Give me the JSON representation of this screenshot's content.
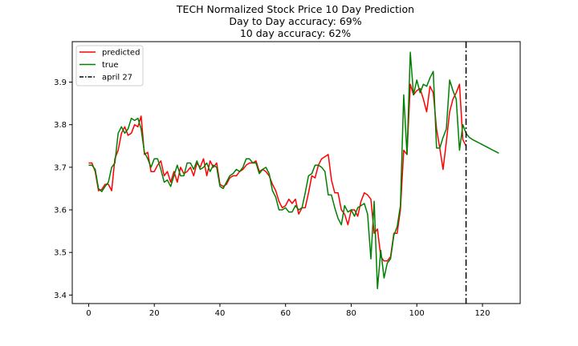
{
  "chart_data": {
    "type": "line",
    "title": "TECH Normalized Stock Price 10 Day Prediction",
    "subtitle": [
      "Day to Day accuracy: 69%",
      "10 day accuracy: 62%"
    ],
    "xlabel": "",
    "ylabel": "",
    "xlim": [
      -5,
      131.5
    ],
    "ylim": [
      3.38,
      3.995
    ],
    "xticks": [
      0,
      20,
      40,
      60,
      80,
      100,
      120
    ],
    "yticks": [
      3.4,
      3.5,
      3.6,
      3.7,
      3.8,
      3.9
    ],
    "grid": false,
    "legend_position": "upper-left",
    "vline": {
      "x": 115,
      "name": "april 27",
      "color": "#000000",
      "style": "dash-dot"
    },
    "series": [
      {
        "name": "predicted",
        "color": "#ff0000",
        "x": [
          0,
          1,
          2,
          3,
          4,
          5,
          6,
          7,
          8,
          9,
          10,
          11,
          12,
          13,
          14,
          15,
          16,
          17,
          18,
          19,
          20,
          21,
          22,
          23,
          24,
          25,
          26,
          27,
          28,
          29,
          30,
          31,
          32,
          33,
          34,
          35,
          36,
          37,
          38,
          39,
          40,
          41,
          42,
          43,
          44,
          45,
          46,
          47,
          48,
          49,
          50,
          51,
          52,
          53,
          54,
          55,
          56,
          57,
          58,
          59,
          60,
          61,
          62,
          63,
          64,
          65,
          66,
          67,
          68,
          69,
          70,
          71,
          72,
          73,
          74,
          75,
          76,
          77,
          78,
          79,
          80,
          81,
          82,
          83,
          84,
          85,
          86,
          87,
          88,
          89,
          90,
          91,
          92,
          93,
          94,
          95,
          96,
          97,
          98,
          99,
          100,
          101,
          102,
          103,
          104,
          105,
          106,
          107,
          108,
          109,
          110,
          111,
          112,
          113,
          114,
          115
        ],
        "values": [
          3.71,
          3.71,
          3.69,
          3.645,
          3.648,
          3.66,
          3.66,
          3.645,
          3.72,
          3.74,
          3.78,
          3.795,
          3.775,
          3.78,
          3.8,
          3.795,
          3.82,
          3.73,
          3.735,
          3.69,
          3.69,
          3.705,
          3.715,
          3.68,
          3.69,
          3.665,
          3.69,
          3.665,
          3.7,
          3.685,
          3.69,
          3.7,
          3.68,
          3.71,
          3.7,
          3.72,
          3.68,
          3.715,
          3.7,
          3.71,
          3.66,
          3.655,
          3.66,
          3.675,
          3.68,
          3.68,
          3.69,
          3.695,
          3.705,
          3.71,
          3.71,
          3.715,
          3.69,
          3.695,
          3.69,
          3.68,
          3.66,
          3.645,
          3.62,
          3.605,
          3.61,
          3.625,
          3.615,
          3.625,
          3.59,
          3.605,
          3.605,
          3.64,
          3.68,
          3.675,
          3.705,
          3.72,
          3.725,
          3.73,
          3.67,
          3.64,
          3.64,
          3.6,
          3.59,
          3.565,
          3.6,
          3.6,
          3.585,
          3.62,
          3.64,
          3.635,
          3.625,
          3.545,
          3.555,
          3.49,
          3.48,
          3.48,
          3.49,
          3.545,
          3.545,
          3.6,
          3.74,
          3.73,
          3.895,
          3.87,
          3.88,
          3.885,
          3.86,
          3.83,
          3.89,
          3.875,
          3.79,
          3.745,
          3.695,
          3.76,
          3.83,
          3.86,
          3.875,
          3.895,
          3.765,
          3.75
        ]
      },
      {
        "name": "true",
        "color": "#008000",
        "x": [
          0,
          1,
          2,
          3,
          4,
          5,
          6,
          7,
          8,
          9,
          10,
          11,
          12,
          13,
          14,
          15,
          16,
          17,
          18,
          19,
          20,
          21,
          22,
          23,
          24,
          25,
          26,
          27,
          28,
          29,
          30,
          31,
          32,
          33,
          34,
          35,
          36,
          37,
          38,
          39,
          40,
          41,
          42,
          43,
          44,
          45,
          46,
          47,
          48,
          49,
          50,
          51,
          52,
          53,
          54,
          55,
          56,
          57,
          58,
          59,
          60,
          61,
          62,
          63,
          64,
          65,
          66,
          67,
          68,
          69,
          70,
          71,
          72,
          73,
          74,
          75,
          76,
          77,
          78,
          79,
          80,
          81,
          82,
          83,
          84,
          85,
          86,
          87,
          88,
          89,
          90,
          91,
          92,
          93,
          94,
          95,
          96,
          97,
          98,
          99,
          100,
          101,
          102,
          103,
          104,
          105,
          106,
          107,
          108,
          109,
          110,
          111,
          112,
          113,
          114,
          115
        ],
        "values": [
          3.705,
          3.705,
          3.695,
          3.65,
          3.643,
          3.655,
          3.665,
          3.7,
          3.71,
          3.78,
          3.795,
          3.78,
          3.79,
          3.815,
          3.81,
          3.815,
          3.79,
          3.735,
          3.72,
          3.7,
          3.72,
          3.72,
          3.695,
          3.665,
          3.67,
          3.655,
          3.68,
          3.705,
          3.68,
          3.68,
          3.71,
          3.71,
          3.695,
          3.715,
          3.695,
          3.7,
          3.71,
          3.69,
          3.705,
          3.7,
          3.655,
          3.65,
          3.665,
          3.68,
          3.685,
          3.695,
          3.69,
          3.7,
          3.72,
          3.72,
          3.71,
          3.71,
          3.685,
          3.695,
          3.7,
          3.685,
          3.645,
          3.63,
          3.6,
          3.6,
          3.605,
          3.595,
          3.595,
          3.61,
          3.6,
          3.605,
          3.64,
          3.68,
          3.685,
          3.705,
          3.705,
          3.7,
          3.69,
          3.635,
          3.635,
          3.605,
          3.58,
          3.565,
          3.61,
          3.595,
          3.6,
          3.585,
          3.605,
          3.61,
          3.615,
          3.59,
          3.485,
          3.62,
          3.415,
          3.505,
          3.44,
          3.475,
          3.485,
          3.54,
          3.56,
          3.61,
          3.87,
          3.73,
          3.97,
          3.87,
          3.905,
          3.875,
          3.895,
          3.89,
          3.91,
          3.925,
          3.745,
          3.745,
          3.77,
          3.79,
          3.905,
          3.88,
          3.86,
          3.74,
          3.8,
          3.78
        ]
      },
      {
        "name": "",
        "color": "#008000",
        "x": [
          115,
          116,
          117,
          118,
          119,
          120,
          121,
          122,
          123,
          124,
          125
        ],
        "values": [
          3.78,
          3.77,
          3.765,
          3.761,
          3.757,
          3.753,
          3.749,
          3.745,
          3.741,
          3.737,
          3.733
        ]
      }
    ]
  }
}
